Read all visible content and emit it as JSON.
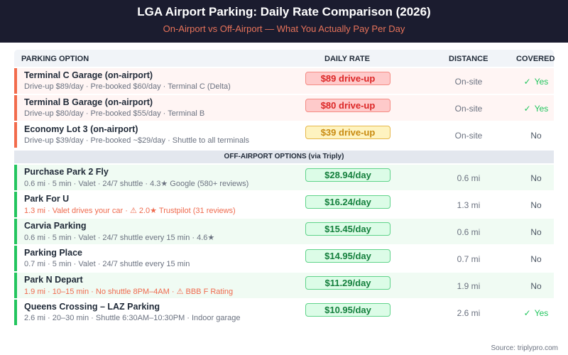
{
  "header": {
    "title": "LGA Airport Parking: Daily Rate Comparison (2026)",
    "subtitle": "On-Airport vs Off-Airport — What You Actually Pay Per Day"
  },
  "columns": {
    "option": "PARKING OPTION",
    "rate": "DAILY RATE",
    "distance": "DISTANCE",
    "covered": "COVERED"
  },
  "on_airport": [
    {
      "name": "Terminal C Garage (on-airport)",
      "desc": "Drive-up $89/day · Pre-booked $60/day · Terminal C (Delta)",
      "rate": "$89 drive-up",
      "distance": "On-site",
      "covered": "Yes",
      "rate_style": "red"
    },
    {
      "name": "Terminal B Garage (on-airport)",
      "desc": "Drive-up $80/day · Pre-booked $55/day · Terminal B",
      "rate": "$80 drive-up",
      "distance": "On-site",
      "covered": "Yes",
      "rate_style": "red"
    },
    {
      "name": "Economy Lot 3 (on-airport)",
      "desc": "Drive-up $39/day · Pre-booked ~$29/day · Shuttle to all terminals",
      "rate": "$39 drive-up",
      "distance": "On-site",
      "covered": "No",
      "rate_style": "yellow"
    }
  ],
  "section_label": "OFF-AIRPORT OPTIONS (via Triply)",
  "off_airport": [
    {
      "name": "Purchase Park 2 Fly",
      "desc": "0.6 mi · 5 min · Valet · 24/7 shuttle · 4.3★ Google (580+ reviews)",
      "rate": "$28.94/day",
      "distance": "0.6 mi",
      "covered": "No",
      "warning": false
    },
    {
      "name": "Park For U",
      "desc": "1.3 mi · Valet drives your car · ⚠ 2.0★ Trustpilot (31 reviews)",
      "rate": "$16.24/day",
      "distance": "1.3 mi",
      "covered": "No",
      "warning": true
    },
    {
      "name": "Carvia Parking",
      "desc": "0.6 mi · 5 min · Valet · 24/7 shuttle every 15 min · 4.6★",
      "rate": "$15.45/day",
      "distance": "0.6 mi",
      "covered": "No",
      "warning": false
    },
    {
      "name": "Parking Place",
      "desc": "0.7 mi · 5 min · Valet · 24/7 shuttle every 15 min",
      "rate": "$14.95/day",
      "distance": "0.7 mi",
      "covered": "No",
      "warning": false
    },
    {
      "name": "Park N Depart",
      "desc": "1.9 mi · 10–15 min · No shuttle 8PM–4AM · ⚠ BBB F Rating",
      "rate": "$11.29/day",
      "distance": "1.9 mi",
      "covered": "No",
      "warning": true
    },
    {
      "name": "Queens Crossing – LAZ Parking",
      "desc": "2.6 mi · 20–30 min · Shuttle 6:30AM–10:30PM · Indoor garage",
      "rate": "$10.95/day",
      "distance": "2.6 mi",
      "covered": "Yes",
      "warning": false
    }
  ],
  "check_glyph": "✓",
  "source": "Source: triplypro.com",
  "colors": {
    "header_bg": "#1b1c2f",
    "accent_orange": "#f26b4b",
    "accent_green": "#22c55e",
    "rate_red": "#dc2626",
    "rate_yellow": "#c88a10",
    "rate_green": "#15803d"
  }
}
